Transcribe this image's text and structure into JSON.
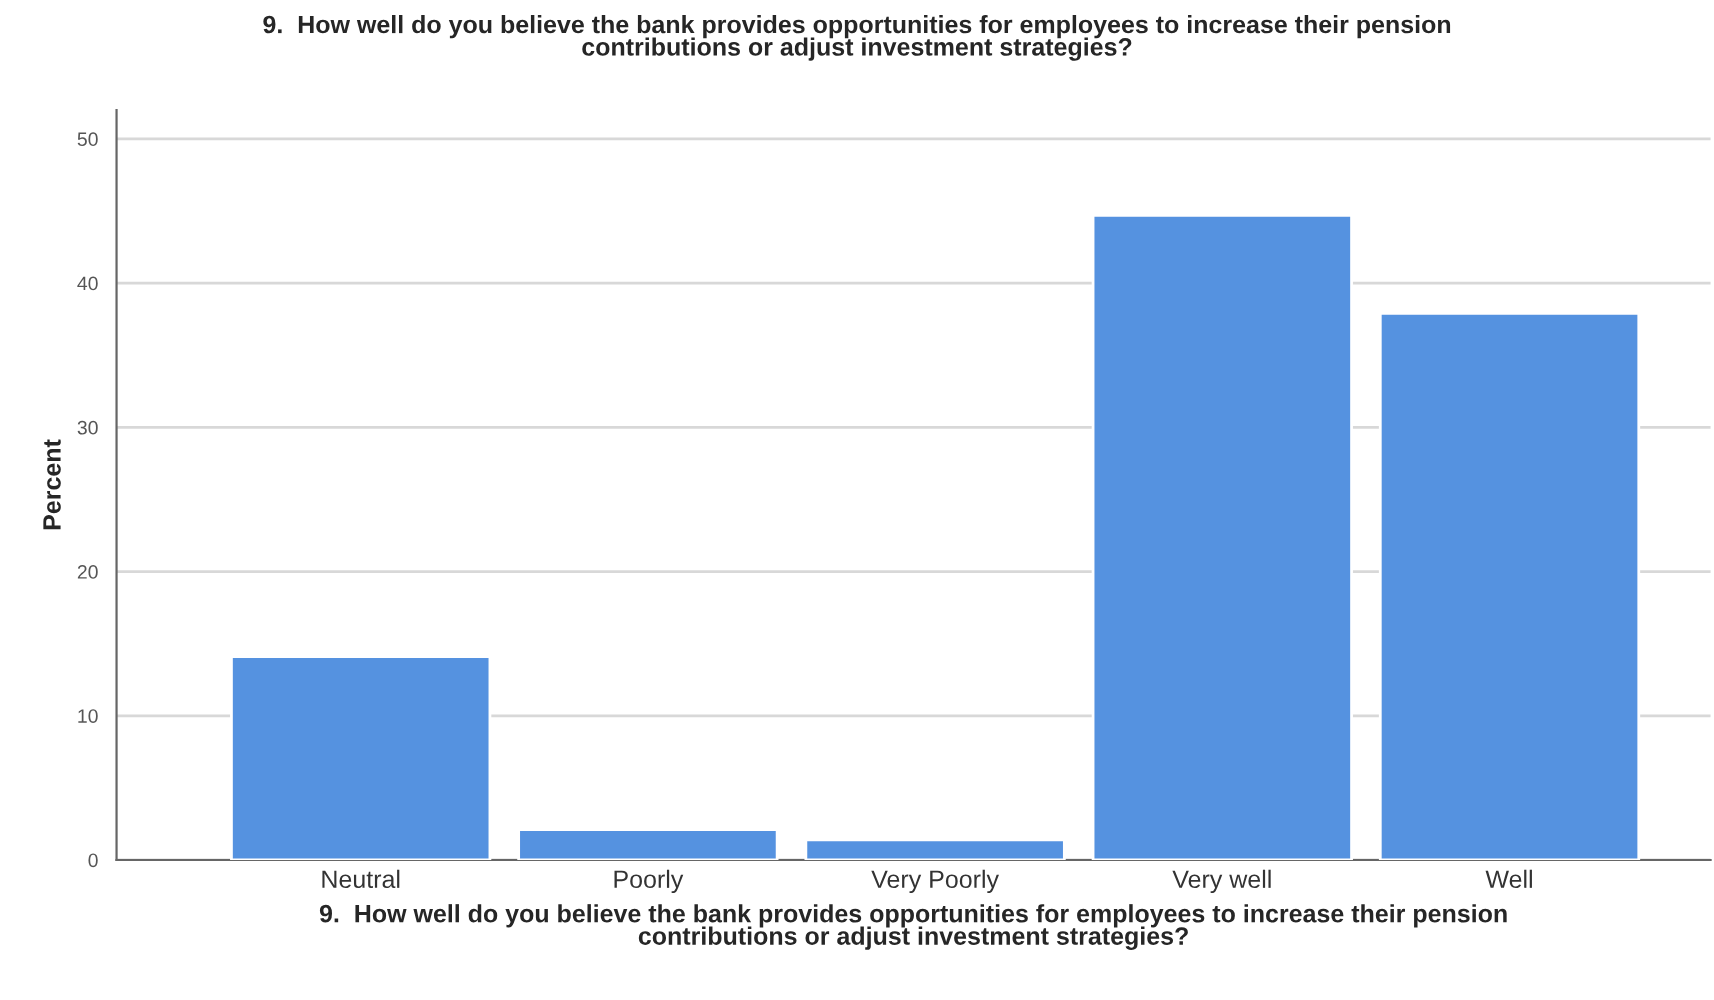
{
  "chart_data": {
    "type": "bar",
    "title": "9.  How well do you believe the bank provides opportunities for employees to increase their pension\ncontributions or adjust investment strategies?",
    "xlabel": "9.  How well do you believe the bank provides opportunities for employees to increase their pension\ncontributions or adjust investment strategies?",
    "ylabel": "Percent",
    "categories": [
      "Neutral",
      "Poorly",
      "Very Poorly",
      "Very well",
      "Well"
    ],
    "series": [
      {
        "color": "#5592e0",
        "values": [
          14.1,
          2.1,
          1.4,
          44.7,
          37.9
        ]
      }
    ],
    "ylim": [
      0,
      52
    ],
    "yticks": [
      0,
      10,
      20,
      30,
      40,
      50
    ],
    "grid": "y"
  }
}
